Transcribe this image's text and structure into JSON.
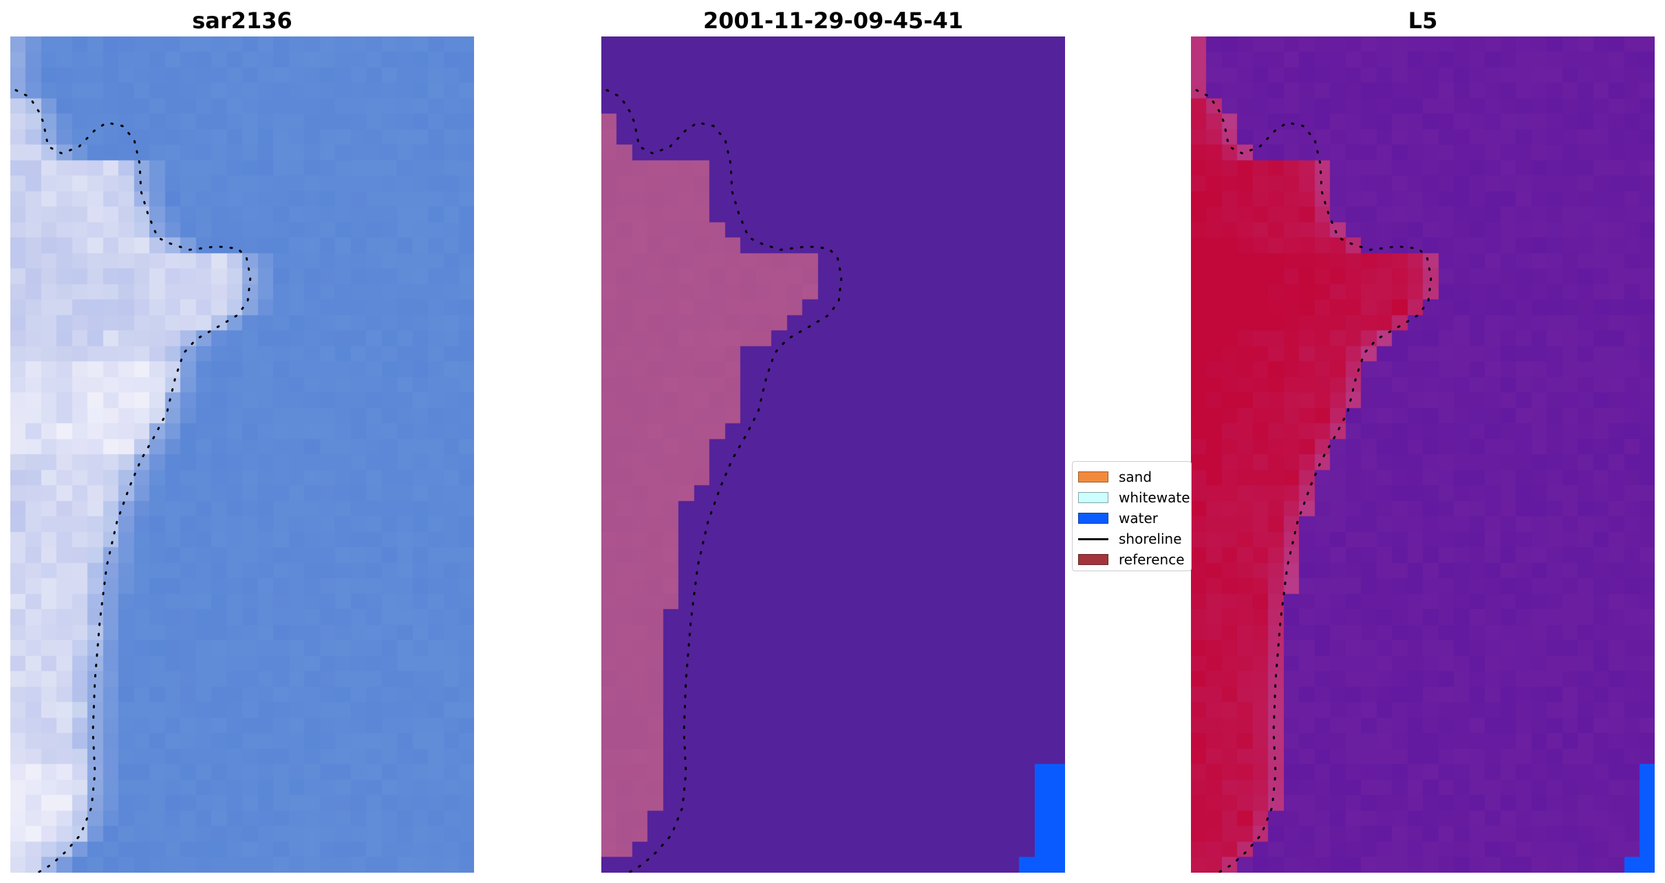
{
  "panels": [
    {
      "title": "sar2136",
      "kind": "rgb"
    },
    {
      "title": "2001-11-29-09-45-41",
      "kind": "classified"
    },
    {
      "title": "L5",
      "kind": "index"
    }
  ],
  "legend": {
    "placement": "center",
    "items": [
      {
        "label": "sand",
        "type": "patch",
        "color": "#f28a3c"
      },
      {
        "label": "whitewater",
        "type": "patch",
        "color": "#ccffff"
      },
      {
        "label": "water",
        "type": "patch",
        "color": "#0a5bff"
      },
      {
        "label": "shoreline",
        "type": "line",
        "color": "#000000"
      },
      {
        "label": "reference",
        "type": "patch",
        "color": "#a3343b"
      }
    ]
  },
  "colors": {
    "rgb_water": "#5c88d6",
    "rgb_land": "#c6cdee",
    "rgb_bright": "#f4f2fb",
    "class_background": "#54229a",
    "class_land": "#b2578f",
    "class_water": "#0a5bff",
    "index_low": "#6c1fa0",
    "index_mid": "#b83a88",
    "index_high": "#c2073a"
  },
  "chart_data": {
    "type": "heatmap",
    "grid": false,
    "axes": "off",
    "shoreline_style": "dotted black line",
    "panels": [
      "sar2136",
      "2001-11-29-09-45-41",
      "L5"
    ],
    "legend_entries": [
      "sand",
      "whitewater",
      "water",
      "shoreline",
      "reference"
    ]
  }
}
